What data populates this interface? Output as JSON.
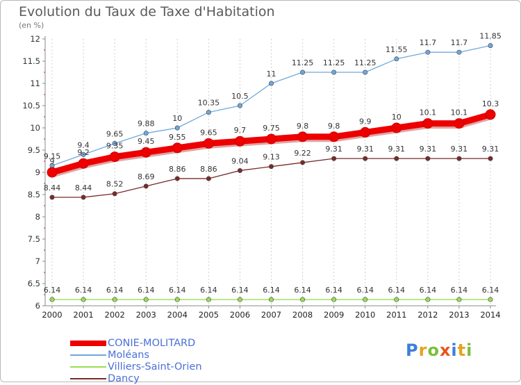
{
  "title": "Evolution du Taux de Taxe d'Habitation",
  "subtitle": "(en %)",
  "logo_text": "Proxiti",
  "chart_data": {
    "type": "line",
    "title": "Evolution du Taux de Taxe d'Habitation",
    "ylabel": "(en %)",
    "xlabel": "",
    "ylim": [
      6,
      12
    ],
    "yticks": [
      "6",
      "6.5",
      "7",
      "7.5",
      "8",
      "8.5",
      "9",
      "9.5",
      "10",
      "10.5",
      "11",
      "11.5",
      "12"
    ],
    "x": [
      "2000",
      "2001",
      "2002",
      "2003",
      "2004",
      "2005",
      "2006",
      "2007",
      "2008",
      "2009",
      "2010",
      "2011",
      "2012",
      "2013",
      "2014"
    ],
    "grid": "vertical dashed",
    "legend_position": "bottom-left",
    "series": [
      {
        "name": "CONIE-MOLITARD",
        "color": "#ee0000",
        "values": [
          9,
          9.2,
          9.35,
          9.45,
          9.55,
          9.65,
          9.7,
          9.75,
          9.8,
          9.8,
          9.9,
          10,
          10.1,
          10.1,
          10.3
        ],
        "labels": [
          "9",
          "9.2",
          "9.35",
          "9.45",
          "9.55",
          "9.65",
          "9.7",
          "9.75",
          "9.8",
          "9.8",
          "9.9",
          "10",
          "10.1",
          "10.1",
          "10.3"
        ]
      },
      {
        "name": "Moléans",
        "color": "#6fa8dc",
        "values": [
          9.15,
          9.4,
          9.65,
          9.88,
          10,
          10.35,
          10.5,
          11,
          11.25,
          11.25,
          11.25,
          11.55,
          11.7,
          11.7,
          11.85
        ],
        "labels": [
          "9.15",
          "9.4",
          "9.65",
          "9.88",
          "10",
          "10.35",
          "10.5",
          "11",
          "11.25",
          "11.25",
          "11.25",
          "11.55",
          "11.7",
          "11.7",
          "11.85"
        ]
      },
      {
        "name": "Villiers-Saint-Orien",
        "color": "#99dd55",
        "values": [
          6.14,
          6.14,
          6.14,
          6.14,
          6.14,
          6.14,
          6.14,
          6.14,
          6.14,
          6.14,
          6.14,
          6.14,
          6.14,
          6.14,
          6.14
        ],
        "labels": [
          "6.14",
          "6.14",
          "6.14",
          "6.14",
          "6.14",
          "6.14",
          "6.14",
          "6.14",
          "6.14",
          "6.14",
          "6.14",
          "6.14",
          "6.14",
          "6.14",
          "6.14"
        ]
      },
      {
        "name": "Dancy",
        "color": "#7a2a2a",
        "values": [
          8.44,
          8.44,
          8.52,
          8.69,
          8.86,
          8.86,
          9.04,
          9.13,
          9.22,
          9.31,
          9.31,
          9.31,
          9.31,
          9.31,
          9.31
        ],
        "labels": [
          "8.44",
          "8.44",
          "8.52",
          "8.69",
          "8.86",
          "8.86",
          "9.04",
          "9.13",
          "9.22",
          "9.31",
          "9.31",
          "9.31",
          "9.31",
          "9.31",
          "9.31"
        ]
      }
    ]
  }
}
